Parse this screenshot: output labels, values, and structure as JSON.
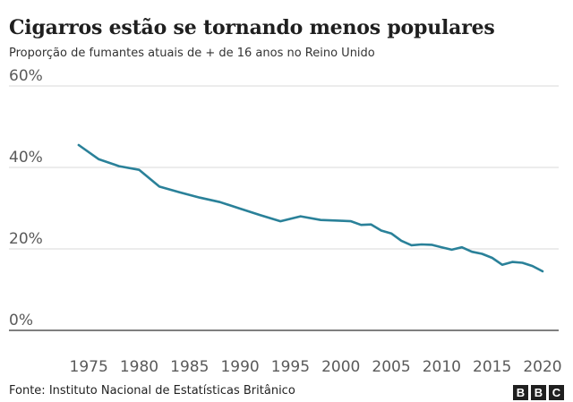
{
  "chart_data": {
    "type": "line",
    "title": "Cigarros estão se tornando menos populares",
    "subtitle": "Proporção de fumantes atuais de + de 16 anos no Reino Unido",
    "xlabel": "",
    "ylabel": "",
    "xlim": [
      1971.7,
      2021.6
    ],
    "ylim": [
      0,
      60
    ],
    "x_ticks": [
      1975,
      1980,
      1985,
      1990,
      1995,
      2000,
      2005,
      2010,
      2015,
      2020
    ],
    "y_ticks": [
      0,
      20,
      40,
      60
    ],
    "y_tick_labels": [
      "0%",
      "20%",
      "40%",
      "60%"
    ],
    "grid": true,
    "legend": "none",
    "series": [
      {
        "color": "#2a8199",
        "x": [
          1974,
          1976,
          1978,
          1980,
          1982,
          1984,
          1986,
          1988,
          1990,
          1992,
          1994,
          1996,
          1998,
          2000,
          2001,
          2002,
          2003,
          2004,
          2005,
          2006,
          2007,
          2008,
          2009,
          2010,
          2011,
          2012,
          2013,
          2014,
          2015,
          2016,
          2017,
          2018,
          2019,
          2020
        ],
        "y": [
          45.5,
          42,
          40.3,
          39.4,
          35.3,
          33.9,
          32.6,
          31.5,
          29.9,
          28.3,
          26.8,
          28,
          27.1,
          26.9,
          26.8,
          25.9,
          26,
          24.5,
          23.8,
          22,
          20.9,
          21.1,
          21,
          20.4,
          19.8,
          20.4,
          19.3,
          18.8,
          17.8,
          16.1,
          16.8,
          16.6,
          15.8,
          14.5
        ]
      }
    ]
  },
  "footer": {
    "source": "Fonte: Instituto Nacional de Estatísticas Britânico",
    "logo_letters": [
      "B",
      "B",
      "C"
    ]
  },
  "colors": {
    "line": "#2a8199",
    "grid": "#d9d9d9",
    "baseline": "#333333",
    "tick_text": "#5a5a5a"
  }
}
